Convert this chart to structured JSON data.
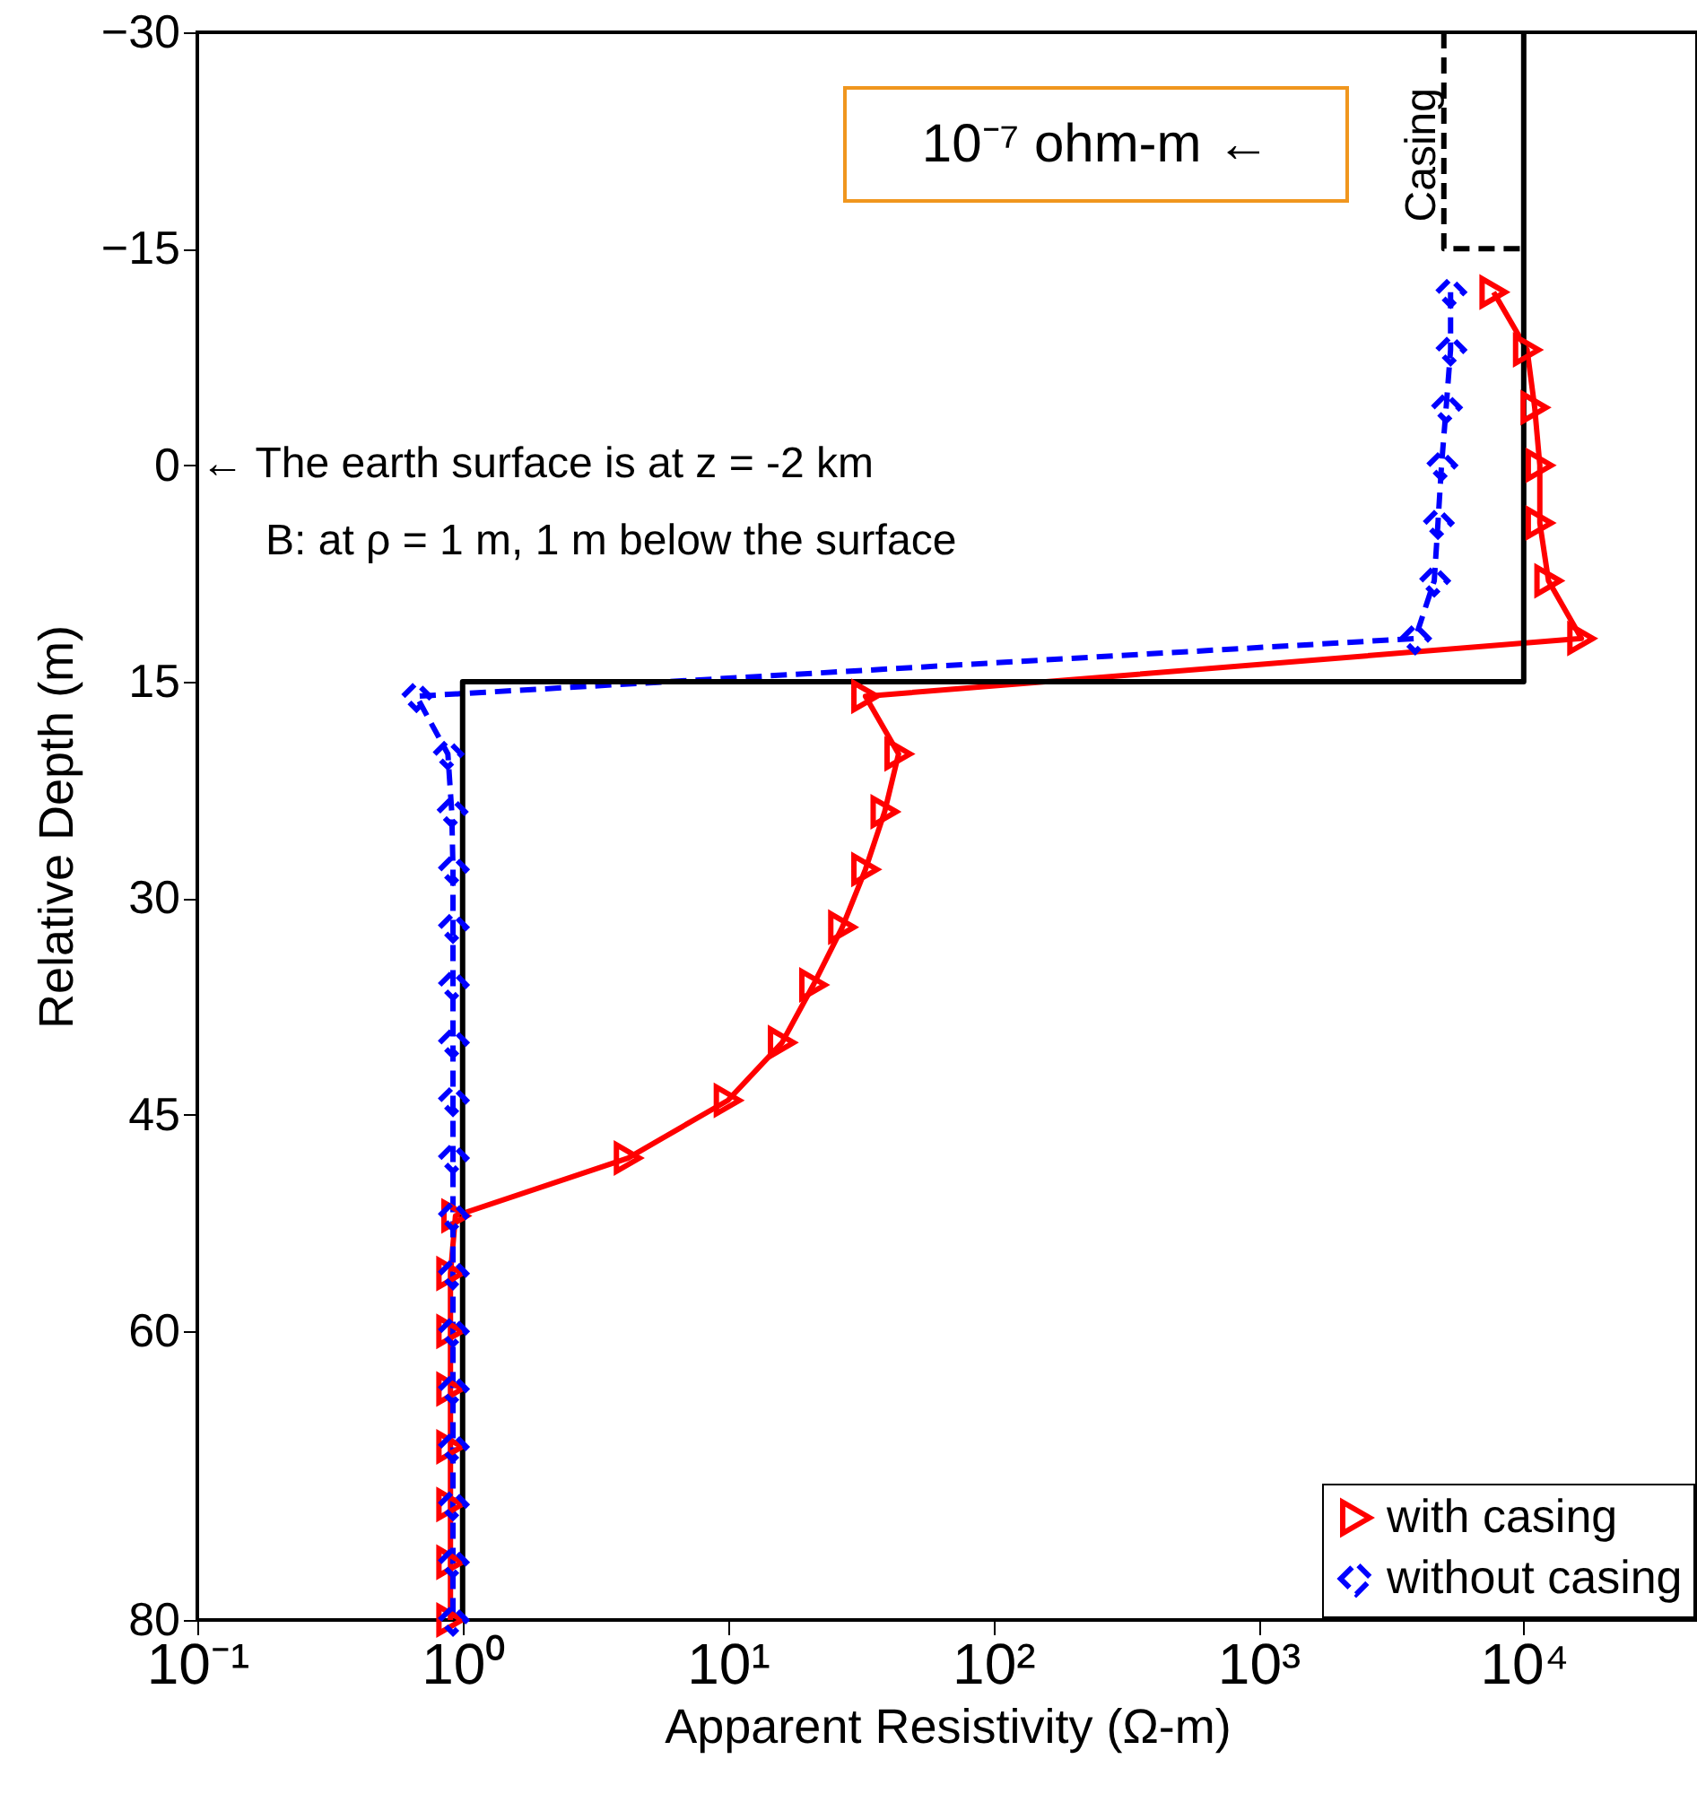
{
  "chart_data": {
    "type": "line",
    "xlabel": "Apparent Resistivity (Ω-m)",
    "ylabel": "Relative Depth (m)",
    "log": "x",
    "xlim": [
      0.1,
      45000
    ],
    "xticks": [
      {
        "value": 0.1,
        "label": "10⁻¹"
      },
      {
        "value": 1,
        "label": "10⁰"
      },
      {
        "value": 10,
        "label": "10¹"
      },
      {
        "value": 100,
        "label": "10²"
      },
      {
        "value": 1000,
        "label": "10³"
      },
      {
        "value": 10000,
        "label": "10⁴"
      }
    ],
    "ylim": [
      80,
      -30
    ],
    "yticks": [
      -30,
      -15,
      0,
      15,
      30,
      45,
      60,
      80
    ],
    "grid": false,
    "legend": "bottom right",
    "series": [
      {
        "name": "with casing",
        "color": "#ff0000",
        "marker": "triangle-right",
        "line_style": "solid",
        "x": [
          7700,
          10300,
          11000,
          11500,
          11500,
          12400,
          16500,
          33,
          44,
          39,
          33,
          27,
          21,
          16,
          10,
          4.2,
          0.94,
          0.9,
          0.9,
          0.9,
          0.9,
          0.9,
          0.9,
          0.9
        ],
        "values": [
          -12,
          -8,
          -4,
          0,
          4,
          8,
          12,
          16,
          20,
          24,
          28,
          32,
          36,
          40,
          44,
          48,
          52,
          56,
          60,
          64,
          68,
          72,
          76,
          80
        ]
      },
      {
        "name": "without casing",
        "color": "#0000ff",
        "marker": "diamond",
        "line_style": "dashed",
        "x": [
          5300,
          5300,
          5100,
          4900,
          4750,
          4600,
          3900,
          0.67,
          0.88,
          0.91,
          0.92,
          0.92,
          0.92,
          0.92,
          0.92,
          0.92,
          0.92,
          0.92,
          0.92,
          0.92,
          0.92,
          0.92,
          0.92,
          0.92
        ],
        "values": [
          -12,
          -8,
          -4,
          0,
          4,
          8,
          12,
          16,
          20,
          24,
          28,
          32,
          36,
          40,
          44,
          48,
          52,
          56,
          60,
          64,
          68,
          72,
          76,
          80
        ]
      },
      {
        "color": "#000000",
        "marker": "none",
        "line_style": "solid",
        "x": [
          10000,
          10000,
          1,
          1
        ],
        "values": [
          -30,
          15,
          15,
          80
        ]
      },
      {
        "color": "#000000",
        "marker": "none",
        "line_style": "dashed",
        "x": [
          5000,
          5000,
          10000
        ],
        "values": [
          -30,
          -15,
          -15
        ]
      }
    ],
    "annotations": [
      "10⁻⁷ ohm-m ←",
      {
        "text": "Casing",
        "x": 5000,
        "y": -22
      },
      "← The earth surface is at  z = -2 km",
      "B: at  ρ = 1 m, 1 m below the surface"
    ]
  }
}
